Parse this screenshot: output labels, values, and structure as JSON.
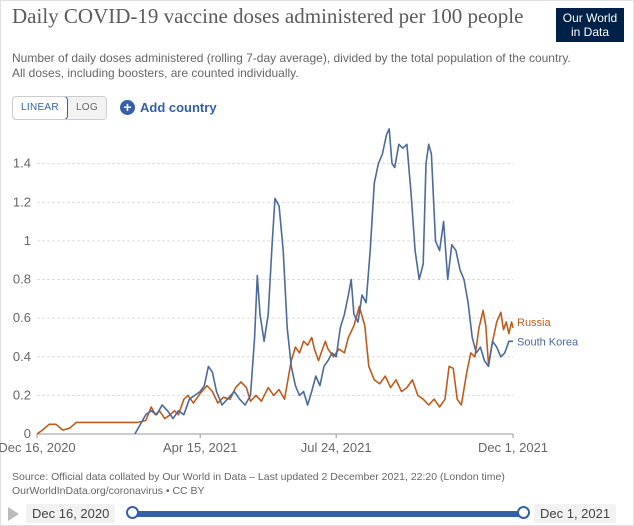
{
  "header": {
    "title": "Daily COVID-19 vaccine doses administered per 100 people",
    "subtitle": "Number of daily doses administered (rolling 7-day average), divided by the total population of the country. All doses, including boosters, are counted individually.",
    "logo_line1": "Our World",
    "logo_line2": "in Data"
  },
  "controls": {
    "linear_label": "LINEAR",
    "log_label": "LOG",
    "add_country_label": "Add country"
  },
  "footer": {
    "source": "Source: Official data collated by Our World in Data – Last updated 2 December 2021, 22:20 (London time)",
    "license": "OurWorldInData.org/coronavirus • CC BY"
  },
  "timeline": {
    "start_label": "Dec 16, 2020",
    "end_label": "Dec 1, 2021"
  },
  "colors": {
    "russia": "#c15b1a",
    "south_korea": "#4c6a9c",
    "grid": "#dddddd",
    "accent": "#3360a9"
  },
  "chart_data": {
    "type": "line",
    "title": "Daily COVID-19 vaccine doses administered per 100 people",
    "x_type": "date",
    "x_range": [
      "2020-12-16",
      "2021-12-01"
    ],
    "x_tick_labels": [
      "Dec 16, 2020",
      "Apr 15, 2021",
      "Jul 24, 2021",
      "Dec 1, 2021"
    ],
    "x_ticks": [
      "2020-12-16",
      "2021-04-15",
      "2021-07-24",
      "2021-12-01"
    ],
    "ylim": [
      0,
      1.6
    ],
    "y_ticks": [
      0,
      0.2,
      0.4,
      0.6,
      0.8,
      1,
      1.2,
      1.4
    ],
    "y_tick_labels": [
      "0",
      "0.2",
      "0.4",
      "0.6",
      "0.8",
      "1",
      "1.2",
      "1.4"
    ],
    "grid": "horizontal dashed",
    "legend": "inline labels at line ends (right)",
    "series": [
      {
        "name": "Russia",
        "color": "#c15b1a",
        "points": [
          [
            "2020-12-16",
            0
          ],
          [
            "2020-12-20",
            0.02
          ],
          [
            "2020-12-25",
            0.05
          ],
          [
            "2020-12-30",
            0.05
          ],
          [
            "2021-01-04",
            0.02
          ],
          [
            "2021-01-09",
            0.03
          ],
          [
            "2021-01-14",
            0.06
          ],
          [
            "2021-01-24",
            0.06
          ],
          [
            "2021-02-08",
            0.06
          ],
          [
            "2021-02-28",
            0.06
          ],
          [
            "2021-03-06",
            0.07
          ],
          [
            "2021-03-10",
            0.14
          ],
          [
            "2021-03-13",
            0.1
          ],
          [
            "2021-03-16",
            0.12
          ],
          [
            "2021-03-20",
            0.08
          ],
          [
            "2021-03-24",
            0.1
          ],
          [
            "2021-03-27",
            0.12
          ],
          [
            "2021-03-30",
            0.1
          ],
          [
            "2021-04-03",
            0.18
          ],
          [
            "2021-04-06",
            0.2
          ],
          [
            "2021-04-10",
            0.16
          ],
          [
            "2021-04-15",
            0.21
          ],
          [
            "2021-04-20",
            0.25
          ],
          [
            "2021-04-24",
            0.22
          ],
          [
            "2021-04-28",
            0.16
          ],
          [
            "2021-05-02",
            0.19
          ],
          [
            "2021-05-07",
            0.18
          ],
          [
            "2021-05-11",
            0.24
          ],
          [
            "2021-05-15",
            0.27
          ],
          [
            "2021-05-19",
            0.24
          ],
          [
            "2021-05-22",
            0.17
          ],
          [
            "2021-05-26",
            0.2
          ],
          [
            "2021-05-30",
            0.17
          ],
          [
            "2021-06-04",
            0.24
          ],
          [
            "2021-06-08",
            0.2
          ],
          [
            "2021-06-12",
            0.23
          ],
          [
            "2021-06-16",
            0.18
          ],
          [
            "2021-06-21",
            0.38
          ],
          [
            "2021-06-24",
            0.45
          ],
          [
            "2021-06-27",
            0.42
          ],
          [
            "2021-06-30",
            0.48
          ],
          [
            "2021-07-03",
            0.46
          ],
          [
            "2021-07-06",
            0.5
          ],
          [
            "2021-07-08",
            0.44
          ],
          [
            "2021-07-11",
            0.38
          ],
          [
            "2021-07-13",
            0.42
          ],
          [
            "2021-07-16",
            0.48
          ],
          [
            "2021-07-18",
            0.44
          ],
          [
            "2021-07-22",
            0.4
          ],
          [
            "2021-07-26",
            0.44
          ],
          [
            "2021-07-30",
            0.42
          ],
          [
            "2021-08-02",
            0.5
          ],
          [
            "2021-08-06",
            0.56
          ],
          [
            "2021-08-10",
            0.66
          ],
          [
            "2021-08-14",
            0.56
          ],
          [
            "2021-08-17",
            0.35
          ],
          [
            "2021-08-21",
            0.28
          ],
          [
            "2021-08-25",
            0.26
          ],
          [
            "2021-08-29",
            0.3
          ],
          [
            "2021-09-02",
            0.24
          ],
          [
            "2021-09-06",
            0.28
          ],
          [
            "2021-09-10",
            0.22
          ],
          [
            "2021-09-14",
            0.24
          ],
          [
            "2021-09-18",
            0.28
          ],
          [
            "2021-09-22",
            0.2
          ],
          [
            "2021-09-26",
            0.18
          ],
          [
            "2021-09-30",
            0.15
          ],
          [
            "2021-10-04",
            0.18
          ],
          [
            "2021-10-08",
            0.14
          ],
          [
            "2021-10-12",
            0.18
          ],
          [
            "2021-10-15",
            0.35
          ],
          [
            "2021-10-18",
            0.34
          ],
          [
            "2021-10-21",
            0.18
          ],
          [
            "2021-10-24",
            0.15
          ],
          [
            "2021-10-28",
            0.32
          ],
          [
            "2021-10-31",
            0.42
          ],
          [
            "2021-11-03",
            0.4
          ],
          [
            "2021-11-06",
            0.55
          ],
          [
            "2021-11-09",
            0.64
          ],
          [
            "2021-11-11",
            0.56
          ],
          [
            "2021-11-13",
            0.36
          ],
          [
            "2021-11-16",
            0.48
          ],
          [
            "2021-11-19",
            0.58
          ],
          [
            "2021-11-22",
            0.63
          ],
          [
            "2021-11-24",
            0.54
          ],
          [
            "2021-11-26",
            0.58
          ],
          [
            "2021-11-28",
            0.52
          ],
          [
            "2021-11-30",
            0.58
          ],
          [
            "2021-12-01",
            0.55
          ]
        ]
      },
      {
        "name": "South Korea",
        "color": "#4c6a9c",
        "points": [
          [
            "2021-02-26",
            0
          ],
          [
            "2021-03-02",
            0.05
          ],
          [
            "2021-03-06",
            0.1
          ],
          [
            "2021-03-10",
            0.12
          ],
          [
            "2021-03-14",
            0.1
          ],
          [
            "2021-03-18",
            0.15
          ],
          [
            "2021-03-22",
            0.12
          ],
          [
            "2021-03-26",
            0.08
          ],
          [
            "2021-03-30",
            0.12
          ],
          [
            "2021-04-03",
            0.1
          ],
          [
            "2021-04-07",
            0.18
          ],
          [
            "2021-04-11",
            0.2
          ],
          [
            "2021-04-15",
            0.22
          ],
          [
            "2021-04-18",
            0.25
          ],
          [
            "2021-04-21",
            0.35
          ],
          [
            "2021-04-24",
            0.32
          ],
          [
            "2021-04-27",
            0.22
          ],
          [
            "2021-05-01",
            0.15
          ],
          [
            "2021-05-05",
            0.18
          ],
          [
            "2021-05-10",
            0.22
          ],
          [
            "2021-05-14",
            0.18
          ],
          [
            "2021-05-18",
            0.15
          ],
          [
            "2021-05-22",
            0.2
          ],
          [
            "2021-05-25",
            0.5
          ],
          [
            "2021-05-27",
            0.82
          ],
          [
            "2021-05-29",
            0.62
          ],
          [
            "2021-06-01",
            0.48
          ],
          [
            "2021-06-04",
            0.62
          ],
          [
            "2021-06-07",
            1.0
          ],
          [
            "2021-06-09",
            1.22
          ],
          [
            "2021-06-12",
            1.18
          ],
          [
            "2021-06-15",
            0.95
          ],
          [
            "2021-06-18",
            0.55
          ],
          [
            "2021-06-21",
            0.35
          ],
          [
            "2021-06-24",
            0.25
          ],
          [
            "2021-06-27",
            0.2
          ],
          [
            "2021-06-30",
            0.22
          ],
          [
            "2021-07-03",
            0.15
          ],
          [
            "2021-07-06",
            0.22
          ],
          [
            "2021-07-09",
            0.3
          ],
          [
            "2021-07-12",
            0.25
          ],
          [
            "2021-07-15",
            0.35
          ],
          [
            "2021-07-18",
            0.38
          ],
          [
            "2021-07-21",
            0.42
          ],
          [
            "2021-07-24",
            0.4
          ],
          [
            "2021-07-27",
            0.55
          ],
          [
            "2021-07-30",
            0.62
          ],
          [
            "2021-08-02",
            0.72
          ],
          [
            "2021-08-04",
            0.8
          ],
          [
            "2021-08-06",
            0.62
          ],
          [
            "2021-08-09",
            0.58
          ],
          [
            "2021-08-12",
            0.72
          ],
          [
            "2021-08-15",
            0.68
          ],
          [
            "2021-08-18",
            0.95
          ],
          [
            "2021-08-21",
            1.3
          ],
          [
            "2021-08-24",
            1.4
          ],
          [
            "2021-08-27",
            1.45
          ],
          [
            "2021-08-30",
            1.55
          ],
          [
            "2021-09-01",
            1.58
          ],
          [
            "2021-09-03",
            1.4
          ],
          [
            "2021-09-05",
            1.38
          ],
          [
            "2021-09-08",
            1.5
          ],
          [
            "2021-09-11",
            1.48
          ],
          [
            "2021-09-14",
            1.5
          ],
          [
            "2021-09-17",
            1.25
          ],
          [
            "2021-09-20",
            0.95
          ],
          [
            "2021-09-23",
            0.8
          ],
          [
            "2021-09-26",
            0.88
          ],
          [
            "2021-09-28",
            1.4
          ],
          [
            "2021-09-30",
            1.5
          ],
          [
            "2021-10-02",
            1.45
          ],
          [
            "2021-10-05",
            1.0
          ],
          [
            "2021-10-08",
            0.95
          ],
          [
            "2021-10-11",
            1.1
          ],
          [
            "2021-10-14",
            0.8
          ],
          [
            "2021-10-17",
            0.98
          ],
          [
            "2021-10-20",
            0.95
          ],
          [
            "2021-10-23",
            0.85
          ],
          [
            "2021-10-26",
            0.8
          ],
          [
            "2021-10-29",
            0.68
          ],
          [
            "2021-11-01",
            0.5
          ],
          [
            "2021-11-04",
            0.42
          ],
          [
            "2021-11-07",
            0.45
          ],
          [
            "2021-11-10",
            0.38
          ],
          [
            "2021-11-13",
            0.35
          ],
          [
            "2021-11-16",
            0.48
          ],
          [
            "2021-11-19",
            0.45
          ],
          [
            "2021-11-22",
            0.4
          ],
          [
            "2021-11-25",
            0.42
          ],
          [
            "2021-11-28",
            0.48
          ],
          [
            "2021-12-01",
            0.48
          ]
        ]
      }
    ]
  }
}
